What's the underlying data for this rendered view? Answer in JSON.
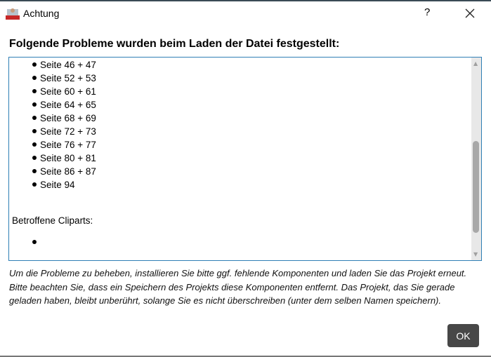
{
  "window": {
    "title": "Achtung",
    "help": "?"
  },
  "heading": "Folgende Probleme wurden beim Laden der Datei festgestellt:",
  "pages": [
    "Seite 46 + 47",
    "Seite 52 + 53",
    "Seite 60 + 61",
    "Seite 64 + 65",
    "Seite 68 + 69",
    "Seite 72 + 73",
    "Seite 76 + 77",
    "Seite 80 + 81",
    "Seite 86 + 87",
    "Seite 94"
  ],
  "cliparts_label": "Betroffene Cliparts:",
  "cliparts": [
    ""
  ],
  "scroll_position_fraction": 0.6,
  "footer": "Um die Probleme zu beheben, installieren Sie bitte ggf. fehlende Komponenten und laden Sie das Projekt erneut. Bitte beachten Sie, dass ein Speichern des Projekts diese Komponenten entfernt. Das Projekt, das Sie gerade geladen haben, bleibt unberührt, solange Sie es nicht überschreiben (unter dem selben Namen speichern).",
  "ok_label": "OK"
}
